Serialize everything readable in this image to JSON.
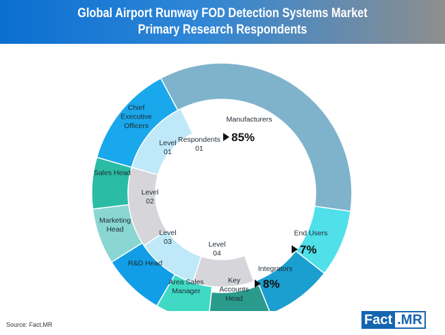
{
  "header": {
    "title_line1": "Global Airport Runway FOD Detection Systems Market",
    "title_line2": "Primary Research Respondents"
  },
  "footer": {
    "source": "Source: Fact.MR",
    "logo_part1": "Fact",
    "logo_part2": ".MR"
  },
  "chart_data": {
    "type": "pie",
    "subtype": "multi-level donut",
    "center_label": [
      "Respondents",
      "01"
    ],
    "outer_ring": [
      {
        "label": [
          "Manufacturers"
        ],
        "value_label": "85%",
        "color": "#7fb3cc"
      },
      {
        "label": [
          "End Users"
        ],
        "value_label": "7%",
        "color": "#4fe0ea"
      },
      {
        "label": [
          "Integrators"
        ],
        "value_label": "8%",
        "color": "#1a9fd0"
      },
      {
        "label": [
          "Key",
          "Accounts",
          "Head"
        ],
        "color": "#2a9a8c"
      },
      {
        "label": [
          "Area Sales",
          "Manager"
        ],
        "color": "#3fd9c4"
      },
      {
        "label": [
          "R&D Head"
        ],
        "color": "#129ee6"
      },
      {
        "label": [
          "Marketing",
          "Head"
        ],
        "color": "#8ad6d3"
      },
      {
        "label": [
          "Sales Head"
        ],
        "color": "#2abca5"
      },
      {
        "label": [
          "Chief",
          "Executive",
          "Officers"
        ],
        "color": "#1aa8ec"
      }
    ],
    "inner_ring": [
      {
        "label": [
          "Level",
          "01"
        ],
        "color": "#bfe8f8"
      },
      {
        "label": [
          "Level",
          "02"
        ],
        "color": "#d6d6da"
      },
      {
        "label": [
          "Level",
          "03"
        ],
        "color": "#bfe8f8"
      },
      {
        "label": [
          "Level",
          "04"
        ],
        "color": "#d6d6da"
      }
    ]
  }
}
